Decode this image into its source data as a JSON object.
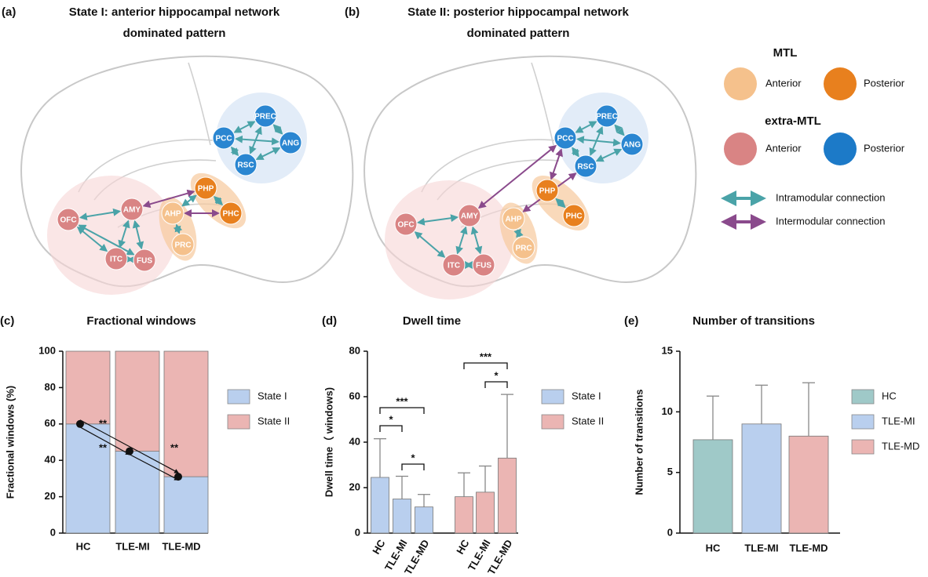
{
  "diagrams": [
    {
      "label": "(a)",
      "title": [
        "State I: anterior hippocampal network",
        "dominated pattern"
      ],
      "nodes": [
        "PREC",
        "PCC",
        "ANG",
        "RSC",
        "PHP",
        "PHC",
        "AHP",
        "PRC",
        "AMY",
        "OFC",
        "ITC",
        "FUS"
      ]
    },
    {
      "label": "(b)",
      "title": [
        "State II: posterior hippocampal network",
        "dominated pattern"
      ],
      "nodes": [
        "PREC",
        "PCC",
        "ANG",
        "RSC",
        "PHP",
        "PHC",
        "AHP",
        "PRC",
        "AMY",
        "OFC",
        "ITC",
        "FUS"
      ]
    }
  ],
  "legend": {
    "mtl": {
      "title": "MTL",
      "anterior": "Anterior",
      "posterior": "Posterior"
    },
    "extra_mtl": {
      "title": "extra-MTL",
      "anterior": "Anterior",
      "posterior": "Posterior"
    },
    "intramodular": "Intramodular connection",
    "intermodular": "Intermodular connection"
  },
  "chart_data": [
    {
      "type": "stacked_bar",
      "label": "(c)",
      "title": "Fractional windows",
      "y_label": "Fractional windows (%)",
      "categories": [
        "HC",
        "TLE-MI",
        "TLE-MD"
      ],
      "series": [
        {
          "name": "State I",
          "color": "#b9cfee",
          "values": [
            60,
            45,
            31
          ]
        },
        {
          "name": "State II",
          "color": "#ebb5b3",
          "values": [
            40,
            55,
            69
          ]
        }
      ],
      "ylim": [
        0,
        100
      ],
      "yticks": [
        0,
        20,
        40,
        60,
        80,
        100
      ],
      "annotations": [
        "**",
        "**",
        "**"
      ]
    },
    {
      "type": "grouped_bar",
      "label": "(d)",
      "title": "Dwell time",
      "y_label": "Dwell time（ windows)",
      "categories": [
        "HC",
        "TLE-MI",
        "TLE-MD"
      ],
      "series": [
        {
          "name": "State I",
          "color": "#b9cfee",
          "values": [
            24.5,
            15,
            11.5
          ],
          "errors": [
            17,
            10,
            5.5
          ]
        },
        {
          "name": "State II",
          "color": "#ebb5b3",
          "values": [
            16,
            18,
            33
          ],
          "errors": [
            10.5,
            11.5,
            28
          ]
        }
      ],
      "ylim": [
        0,
        80
      ],
      "yticks": [
        0,
        20,
        40,
        60,
        80
      ],
      "annotations": [
        "*",
        "***",
        "*",
        "***",
        "*"
      ]
    },
    {
      "type": "bar",
      "label": "(e)",
      "title": "Number of transitions",
      "y_label": "Number of transitions",
      "categories": [
        "HC",
        "TLE-MI",
        "TLE-MD"
      ],
      "values": [
        7.7,
        9.0,
        8.0
      ],
      "errors": [
        3.6,
        3.2,
        4.4
      ],
      "colors": [
        "#9fc9c8",
        "#b9cfee",
        "#ebb5b3"
      ],
      "ylim": [
        0,
        15
      ],
      "yticks": [
        0,
        5,
        10,
        15
      ]
    }
  ]
}
